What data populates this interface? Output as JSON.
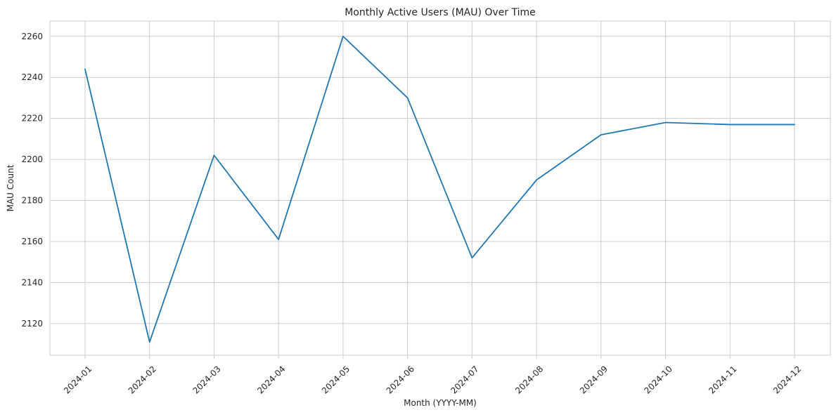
{
  "chart_data": {
    "type": "line",
    "title": "Monthly Active Users (MAU) Over Time",
    "xlabel": "Month (YYYY-MM)",
    "ylabel": "MAU Count",
    "categories": [
      "2024-01",
      "2024-02",
      "2024-03",
      "2024-04",
      "2024-05",
      "2024-06",
      "2024-07",
      "2024-08",
      "2024-09",
      "2024-10",
      "2024-11",
      "2024-12"
    ],
    "series": [
      {
        "values": [
          2244,
          2111,
          2202,
          2161,
          2260,
          2230,
          2152,
          2190,
          2212,
          2218,
          2217,
          2217
        ],
        "color": "#1f77b4"
      }
    ],
    "yticks": [
      2120,
      2140,
      2160,
      2180,
      2200,
      2220,
      2240,
      2260
    ],
    "ylim": [
      2104.55,
      2267.45
    ],
    "grid": true,
    "legend": "none"
  }
}
